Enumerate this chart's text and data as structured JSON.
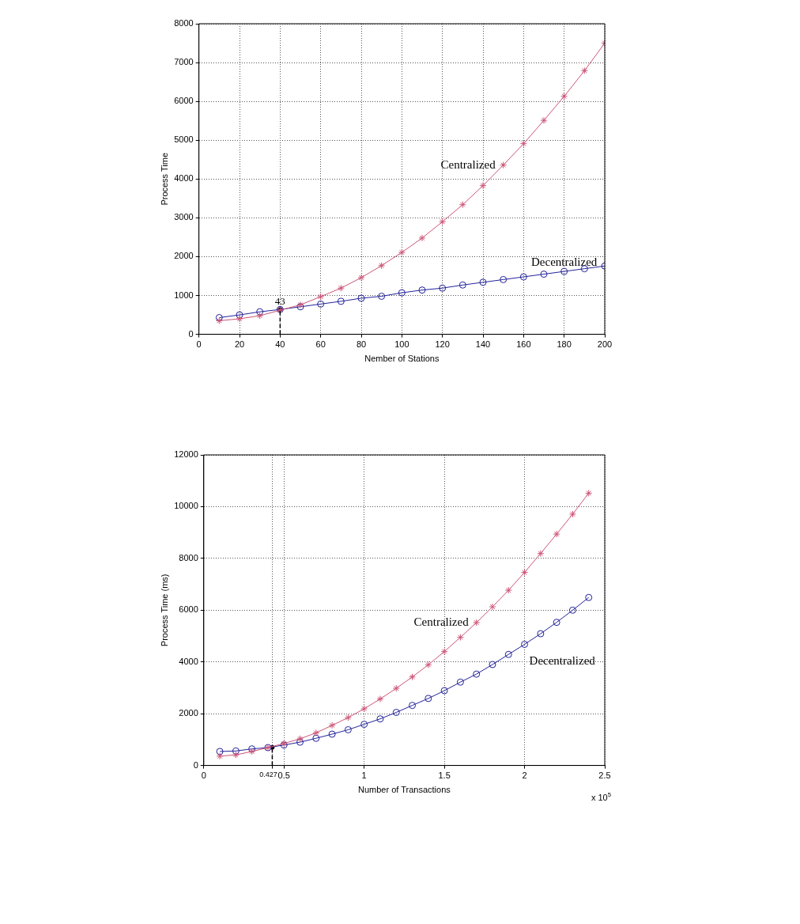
{
  "chart_data": [
    {
      "type": "line",
      "xlabel": "Nember of Stations",
      "ylabel": "Process Time",
      "grid": true,
      "x": [
        10,
        20,
        30,
        40,
        50,
        60,
        70,
        80,
        90,
        100,
        110,
        120,
        130,
        140,
        150,
        160,
        170,
        180,
        190,
        200
      ],
      "xlim": [
        0,
        200
      ],
      "xticks": [
        0,
        20,
        40,
        60,
        80,
        100,
        120,
        140,
        160,
        180,
        200
      ],
      "ylim": [
        0,
        8000
      ],
      "yticks": [
        0,
        1000,
        2000,
        3000,
        4000,
        5000,
        6000,
        7000,
        8000
      ],
      "series": [
        {
          "name": "Centralized",
          "color": "#cc5577",
          "marker": "cross",
          "values": [
            350,
            400,
            480,
            620,
            760,
            970,
            1190,
            1460,
            1770,
            2110,
            2480,
            2900,
            3340,
            3830,
            4360,
            4910,
            5510,
            6130,
            6790,
            7500
          ]
        },
        {
          "name": "Decentralized",
          "color": "#22229a",
          "marker": "circle",
          "values": [
            430,
            500,
            580,
            640,
            710,
            780,
            850,
            930,
            980,
            1070,
            1140,
            1190,
            1270,
            1340,
            1410,
            1480,
            1550,
            1620,
            1690,
            1760
          ]
        },
        {
          "type": "lollipop",
          "x": [
            40
          ],
          "values": [
            640
          ],
          "color": "#000000",
          "marker": "circle",
          "line_style": "dashed"
        }
      ],
      "annotations": [
        {
          "text": "43",
          "x": 40,
          "y": 700
        }
      ]
    },
    {
      "type": "line",
      "xlabel": "Number of Transactions",
      "ylabel": "Process Time (ms)",
      "grid": true,
      "x": [
        0.1,
        0.2,
        0.3,
        0.4,
        0.5,
        0.6,
        0.7,
        0.8,
        0.9,
        1.0,
        1.1,
        1.2,
        1.3,
        1.4,
        1.5,
        1.6,
        1.7,
        1.8,
        1.9,
        2.0,
        2.1,
        2.2,
        2.3,
        2.4
      ],
      "xlim": [
        0,
        2.5
      ],
      "xticks": [
        0,
        {
          "value": 0.427,
          "label": "0.427"
        },
        0.5,
        1,
        1.5,
        2,
        2.5
      ],
      "ylim": [
        0,
        12000
      ],
      "yticks": [
        0,
        2000,
        4000,
        6000,
        8000,
        10000,
        12000
      ],
      "series": [
        {
          "name": "Centralized",
          "color": "#cc5577",
          "marker": "cross",
          "values": [
            360,
            410,
            540,
            690,
            850,
            1030,
            1260,
            1550,
            1850,
            2190,
            2570,
            2980,
            3420,
            3890,
            4400,
            4950,
            5520,
            6130,
            6770,
            7460,
            8190,
            8940,
            9710,
            10520
          ]
        },
        {
          "name": "Decentralized",
          "color": "#22229a",
          "marker": "circle",
          "values": [
            540,
            560,
            640,
            690,
            790,
            900,
            1050,
            1210,
            1380,
            1590,
            1800,
            2050,
            2320,
            2590,
            2890,
            3220,
            3530,
            3900,
            4290,
            4680,
            5090,
            5530,
            6000,
            6490
          ]
        },
        {
          "type": "lollipop",
          "x": [
            0.427
          ],
          "values": [
            700
          ],
          "color": "#000000",
          "marker": "circle",
          "line_style": "dashed"
        }
      ],
      "annotations": [
        "x 10$^{5}$"
      ]
    }
  ]
}
